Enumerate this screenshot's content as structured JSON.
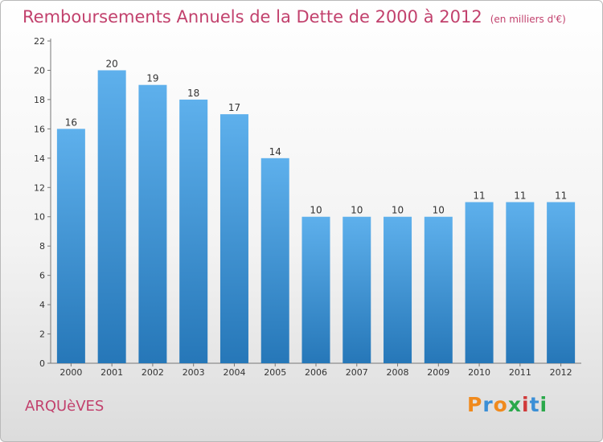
{
  "header": {
    "title": "Remboursements Annuels de la Dette de 2000 à 2012",
    "unit": "(en milliers d'€)"
  },
  "commune": "ARQUèVES",
  "logo": {
    "letters": [
      "P",
      "r",
      "o",
      "x",
      "i",
      "t",
      "i"
    ],
    "colors": [
      "#f08a1d",
      "#3b8fd6",
      "#f08a1d",
      "#2aa84a",
      "#d03a3a",
      "#3b8fd6",
      "#2aa84a"
    ]
  },
  "colors": {
    "bar_top": "#5eb0ec",
    "bar_bottom": "#2677b8",
    "title": "#c2416d"
  },
  "chart_data": {
    "type": "bar",
    "title": "Remboursements Annuels de la Dette de 2000 à 2012",
    "xlabel": "",
    "ylabel": "",
    "categories": [
      "2000",
      "2001",
      "2002",
      "2003",
      "2004",
      "2005",
      "2006",
      "2007",
      "2008",
      "2009",
      "2010",
      "2011",
      "2012"
    ],
    "values": [
      16,
      20,
      19,
      18,
      17,
      14,
      10,
      10,
      10,
      10,
      11,
      11,
      11
    ],
    "ylim": [
      0,
      22
    ],
    "yticks": [
      0,
      2,
      4,
      6,
      8,
      10,
      12,
      14,
      16,
      18,
      20,
      22
    ],
    "grid": false
  }
}
